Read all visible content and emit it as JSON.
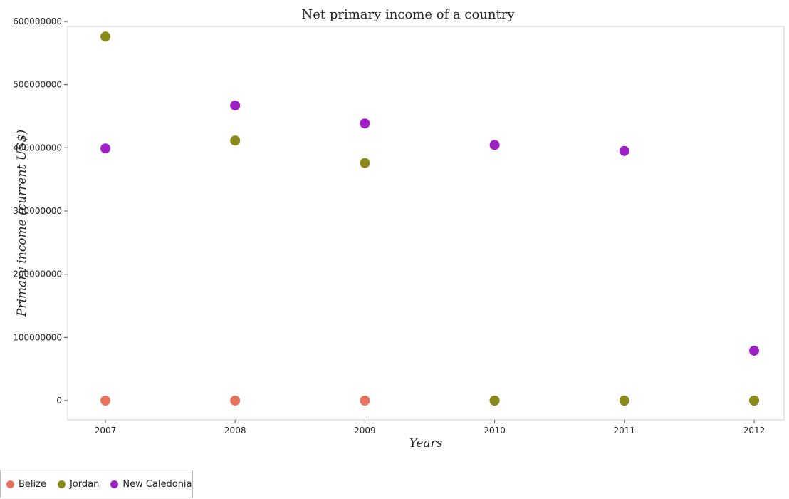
{
  "chart_data": {
    "type": "scatter",
    "title": "Net primary income of a country",
    "xlabel": "Years",
    "ylabel": "Primary income (current US$)",
    "categories": [
      "2007",
      "2008",
      "2009",
      "2010",
      "2011",
      "2012"
    ],
    "ylim": [
      0,
      620000000
    ],
    "yticks": [
      0,
      100000000,
      200000000,
      300000000,
      400000000,
      500000000,
      600000000
    ],
    "ytick_labels": [
      "0",
      "100000000",
      "200000000",
      "300000000",
      "400000000",
      "500000000",
      "600000000"
    ],
    "grid": false,
    "legend_position": "bottom-left",
    "series": [
      {
        "name": "Belize",
        "color": "#e8735f",
        "values": [
          0,
          0,
          0,
          0,
          0,
          0
        ]
      },
      {
        "name": "Jordan",
        "color": "#8a8a1a",
        "values": [
          576000000,
          411500000,
          376000000,
          0,
          0,
          0
        ]
      },
      {
        "name": "New Caledonia",
        "color": "#a020c8",
        "values": [
          399000000,
          467000000,
          438500000,
          404500000,
          395000000,
          79000000
        ]
      }
    ]
  }
}
